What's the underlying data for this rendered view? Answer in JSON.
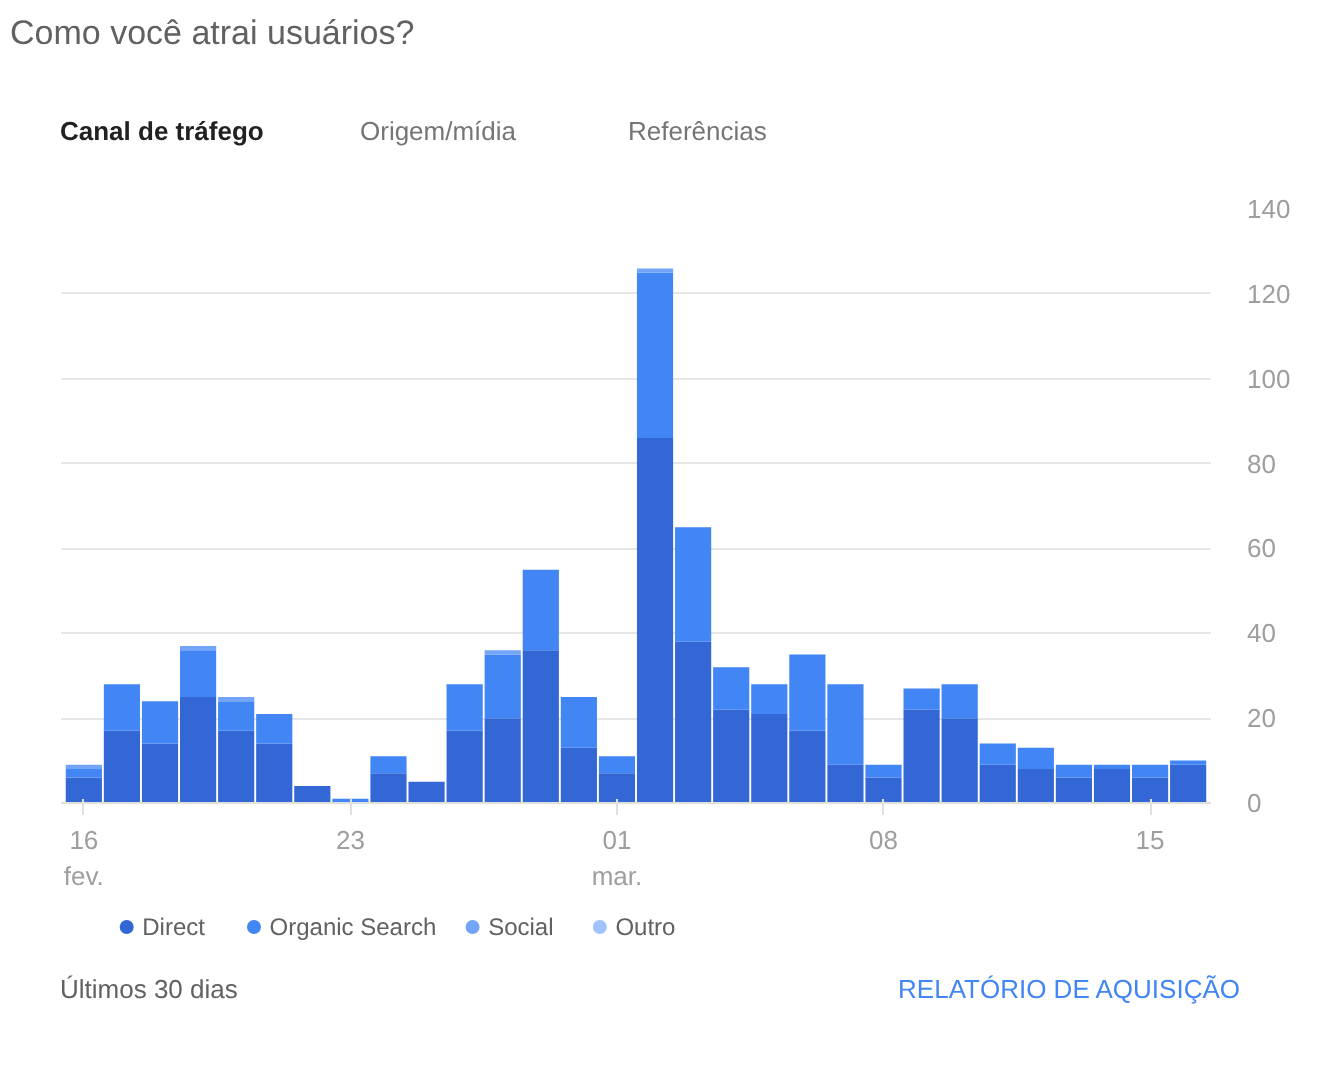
{
  "chart_data": {
    "type": "bar",
    "stacked": true,
    "title": "Como você atrai usuários?",
    "annotations": [
      "Canal de tráfego",
      "Origem/mídia",
      "Referências",
      "Últimos 30 dias",
      "RELATÓRIO DE AQUISIÇÃO"
    ],
    "categories": [
      "16\nfev.",
      null,
      null,
      null,
      null,
      null,
      null,
      "23",
      null,
      null,
      null,
      null,
      null,
      null,
      "01\nmar.",
      null,
      null,
      null,
      null,
      null,
      null,
      "08",
      null,
      null,
      null,
      null,
      null,
      null,
      "15",
      null
    ],
    "series": [
      {
        "name": "Direct",
        "color": "#3367d6",
        "values": [
          6,
          17,
          14,
          25,
          17,
          14,
          4,
          0,
          7,
          5,
          17,
          20,
          36,
          13,
          7,
          86,
          38,
          22,
          21,
          17,
          9,
          6,
          22,
          20,
          9,
          8,
          6,
          8,
          6,
          9
        ]
      },
      {
        "name": "Organic Search",
        "color": "#4285f4",
        "values": [
          2,
          11,
          10,
          11,
          7,
          7,
          0,
          1,
          4,
          0,
          11,
          15,
          19,
          12,
          4,
          39,
          27,
          10,
          7,
          18,
          19,
          3,
          5,
          8,
          5,
          5,
          3,
          1,
          3,
          1
        ]
      },
      {
        "name": "Social",
        "color": "#72a4f7",
        "values": [
          1,
          0,
          0,
          1,
          1,
          0,
          0,
          0,
          0,
          0,
          0,
          1,
          0,
          0,
          0,
          1,
          0,
          0,
          0,
          0,
          0,
          0,
          0,
          0,
          0,
          0,
          0,
          0,
          0,
          0
        ]
      },
      {
        "name": "Outro",
        "color": "#a0c3ff",
        "values": [
          0,
          0,
          0,
          0,
          0,
          0,
          0,
          0,
          0,
          0,
          0,
          0,
          0,
          0,
          0,
          0,
          0,
          0,
          0,
          0,
          0,
          0,
          0,
          0,
          0,
          0,
          0,
          0,
          0,
          0
        ]
      }
    ],
    "ylim": [
      0,
      140
    ],
    "yticks": [
      0,
      20,
      40,
      60,
      80,
      100,
      120,
      140
    ],
    "grid": "y",
    "legend": "bottom"
  }
}
